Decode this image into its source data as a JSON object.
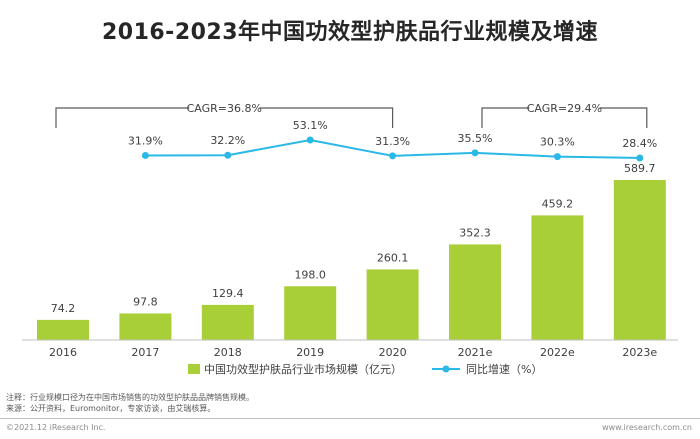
{
  "title": "2016-2023年中国功效型护肤品行业规模及增速",
  "chart_data": {
    "type": "bar",
    "title": "2016-2023年中国功效型护肤品行业规模及增速",
    "categories": [
      "2016",
      "2017",
      "2018",
      "2019",
      "2020",
      "2021e",
      "2022e",
      "2023e"
    ],
    "series": [
      {
        "name": "中国功效型护肤品行业市场规模（亿元）",
        "type": "bar",
        "values": [
          74.2,
          97.8,
          129.4,
          198.0,
          260.1,
          352.3,
          459.2,
          589.7
        ],
        "labels": [
          "74.2",
          "97.8",
          "129.4",
          "198.0",
          "260.1",
          "352.3",
          "459.2",
          "589.7"
        ]
      },
      {
        "name": "同比增速（%）",
        "type": "line",
        "values": [
          null,
          31.9,
          32.2,
          53.1,
          31.3,
          35.5,
          30.3,
          28.4
        ],
        "labels": [
          "",
          "31.9%",
          "32.2%",
          "53.1%",
          "31.3%",
          "35.5%",
          "30.3%",
          "28.4%"
        ]
      }
    ],
    "annotations": [
      {
        "text": "CAGR=36.8%",
        "from": "2016",
        "to": "2020"
      },
      {
        "text": "CAGR=29.4%",
        "from": "2021e",
        "to": "2023e"
      }
    ],
    "ylim": [
      0,
      650
    ],
    "line_ylim": [
      0,
      100
    ],
    "legend_position": "bottom-center"
  },
  "notes": {
    "note": "注释：行业规模口径为在中国市场销售的功效型护肤品品牌销售规模。",
    "source": "来源：公开资料，Euromonitor，专家访谈，由艾瑞核算。"
  },
  "footer": {
    "copyright": "©2021.12 iResearch Inc.",
    "website": "www.iresearch.com.cn"
  },
  "colors": {
    "bar": "#a9cf38",
    "line": "#2ab8e6",
    "axis": "#bfbfbf",
    "text": "#404040",
    "bracket": "#595959"
  }
}
